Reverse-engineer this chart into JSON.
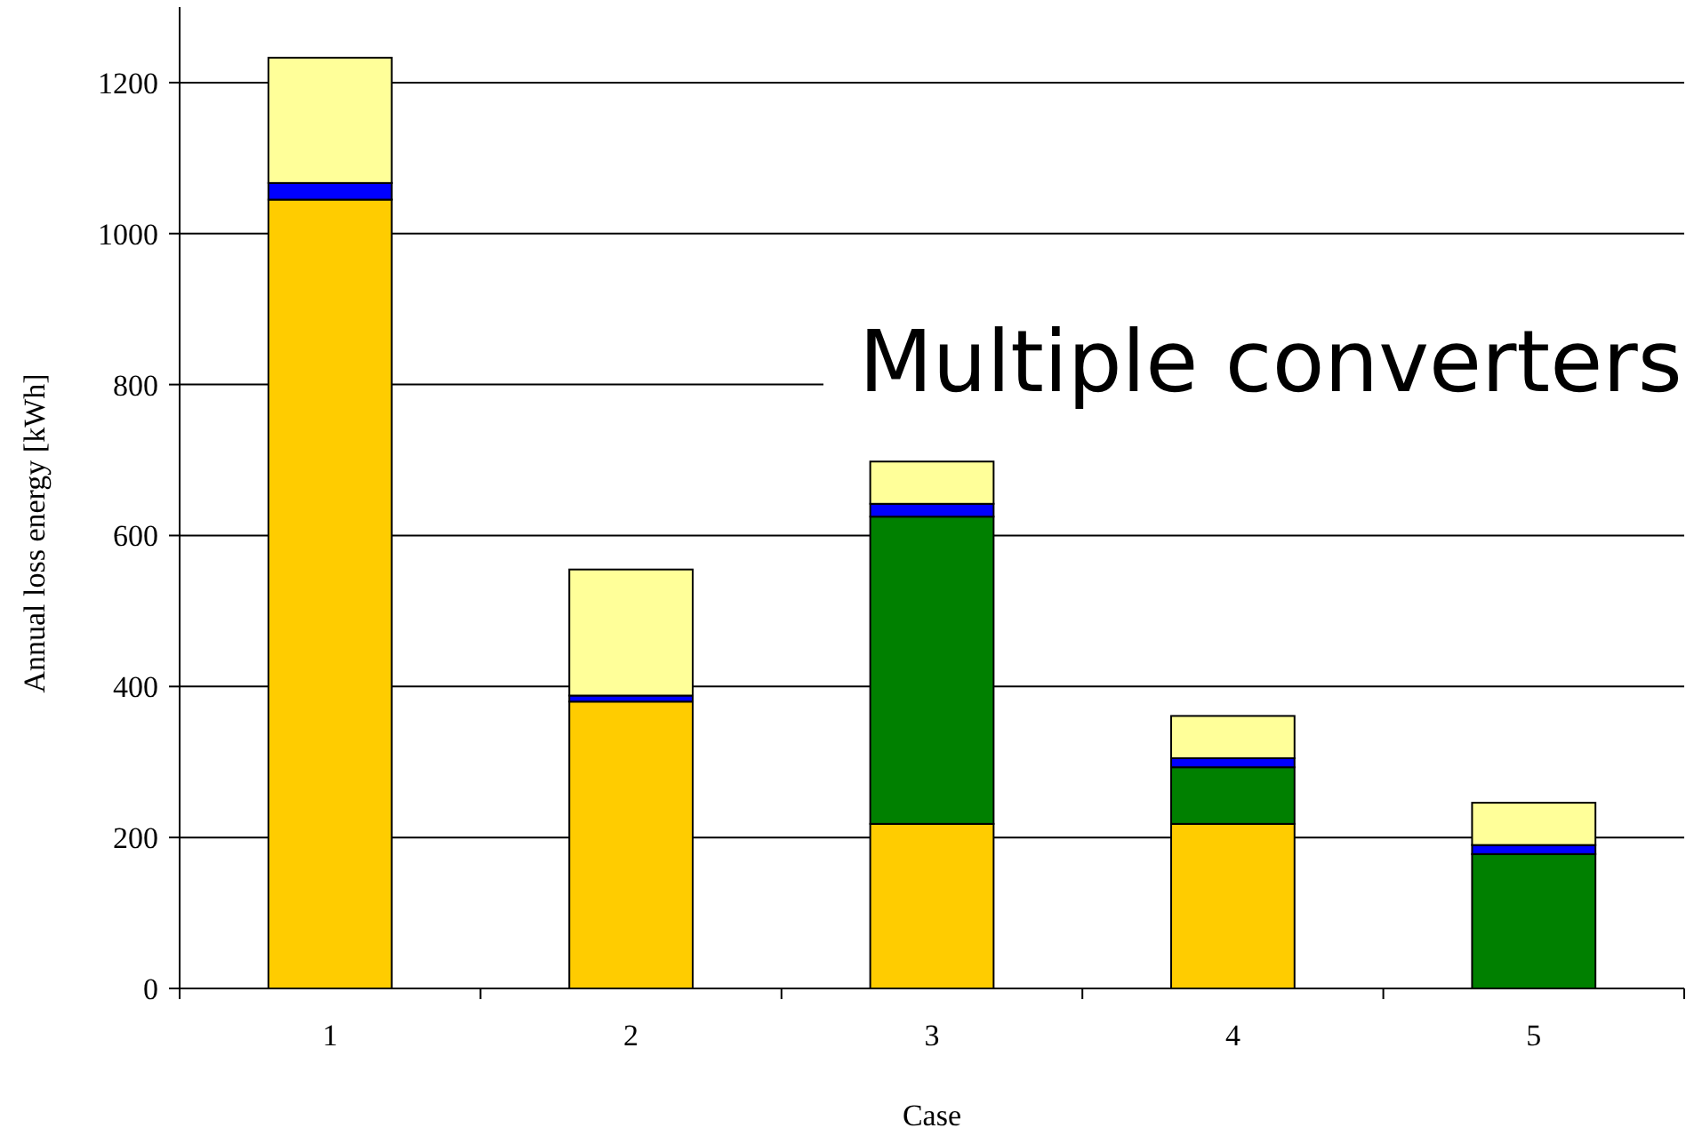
{
  "chart_data": {
    "type": "bar",
    "stacked": true,
    "xlabel": "Case",
    "ylabel": "Annual loss energy [kWh]",
    "annotations": [
      "Multiple converters"
    ],
    "categories": [
      "1",
      "2",
      "3",
      "4",
      "5"
    ],
    "series": [
      {
        "color": "#ffcc00",
        "values": [
          1045,
          380,
          218,
          218,
          0
        ]
      },
      {
        "color": "#008000",
        "values": [
          0,
          0,
          407,
          75,
          178
        ]
      },
      {
        "color": "#0000ff",
        "values": [
          22,
          8,
          17,
          12,
          12
        ]
      },
      {
        "color": "#ffff99",
        "values": [
          166,
          167,
          56,
          56,
          56
        ]
      }
    ],
    "ylim": [
      0,
      1300
    ],
    "yticks": [
      0,
      200,
      400,
      600,
      800,
      1000,
      1200
    ],
    "grid": "y"
  }
}
